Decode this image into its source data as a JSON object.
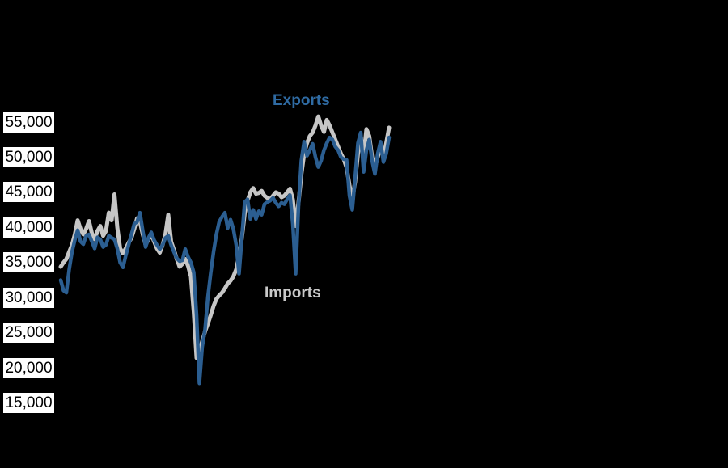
{
  "colors": {
    "background": "#000000",
    "exports_line": "#2b5e91",
    "imports_line": "#c6c6c6",
    "exports_label_text": "#2f6ba3",
    "imports_label_text": "#c9c9c9",
    "tick_text": "#000000",
    "tick_background": "#ffffff"
  },
  "chart_data": {
    "type": "line",
    "title": "",
    "xlabel": "",
    "ylabel": "",
    "ylim": [
      15000,
      55000
    ],
    "grid": false,
    "legend_position": "inline-annotations",
    "x_tick_labels": [],
    "y_ticks": [
      {
        "label": "55,000",
        "value": 55000
      },
      {
        "label": "50,000",
        "value": 50000
      },
      {
        "label": "45,000",
        "value": 45000
      },
      {
        "label": "40,000",
        "value": 40000
      },
      {
        "label": "35,000",
        "value": 35000
      },
      {
        "label": "30,000",
        "value": 30000
      },
      {
        "label": "25,000",
        "value": 25000
      },
      {
        "label": "20,000",
        "value": 20000
      },
      {
        "label": "15,000",
        "value": 15000
      }
    ],
    "series": [
      {
        "name": "Imports",
        "color": "#c6c6c6",
        "values": [
          34400,
          35000,
          35500,
          36500,
          37500,
          39000,
          41000,
          39800,
          39000,
          39800,
          40900,
          39200,
          38300,
          39500,
          40200,
          38800,
          39500,
          42100,
          41000,
          44700,
          40000,
          37000,
          36300,
          37000,
          37800,
          38500,
          39800,
          41300,
          40800,
          39000,
          37500,
          38300,
          39000,
          38000,
          37000,
          36400,
          37500,
          39000,
          41800,
          38000,
          36800,
          35500,
          34400,
          34800,
          35500,
          34500,
          33000,
          28000,
          21400,
          22300,
          23800,
          25200,
          26300,
          27500,
          28800,
          29800,
          30300,
          30700,
          31300,
          32000,
          32400,
          33000,
          34000,
          36000,
          38500,
          42000,
          43800,
          45000,
          45600,
          44800,
          44900,
          45200,
          44500,
          44200,
          44000,
          44500,
          45000,
          44800,
          44300,
          44500,
          45000,
          45500,
          44000,
          40200,
          43500,
          47500,
          50500,
          52000,
          53000,
          53500,
          54500,
          55800,
          54500,
          53600,
          55300,
          54500,
          53500,
          52500,
          51500,
          50500,
          49700,
          48500,
          46000,
          44000,
          46500,
          50500,
          53000,
          50000,
          54000,
          53000,
          50000,
          48500,
          50000,
          51500,
          50000,
          52000,
          54200
        ]
      },
      {
        "name": "Exports",
        "color": "#2b5e91",
        "values": [
          32500,
          31000,
          30700,
          34000,
          36500,
          38200,
          39600,
          38000,
          37600,
          38800,
          39000,
          38000,
          37000,
          38600,
          38300,
          37200,
          37500,
          38800,
          38500,
          38300,
          37000,
          35000,
          34300,
          36000,
          37500,
          39000,
          40500,
          40800,
          42100,
          39500,
          37200,
          38500,
          39300,
          38200,
          37500,
          36900,
          37500,
          38500,
          38800,
          37500,
          36500,
          35600,
          35200,
          35300,
          36900,
          35800,
          35000,
          33600,
          27500,
          17800,
          23000,
          25500,
          30100,
          33500,
          36500,
          39000,
          40800,
          41500,
          42100,
          39900,
          41100,
          39800,
          37500,
          33400,
          38500,
          43600,
          44000,
          41200,
          42500,
          41200,
          42300,
          41800,
          43300,
          43600,
          43800,
          44200,
          43500,
          43000,
          43500,
          43300,
          44000,
          44600,
          40500,
          33400,
          43000,
          49500,
          52200,
          50200,
          51000,
          51900,
          50000,
          48600,
          49500,
          51000,
          52000,
          52800,
          52500,
          51500,
          51000,
          50000,
          49700,
          49600,
          44500,
          42500,
          47000,
          52000,
          53500,
          47900,
          51000,
          52500,
          49500,
          47600,
          50500,
          52200,
          49300,
          50500,
          52800
        ]
      }
    ]
  }
}
